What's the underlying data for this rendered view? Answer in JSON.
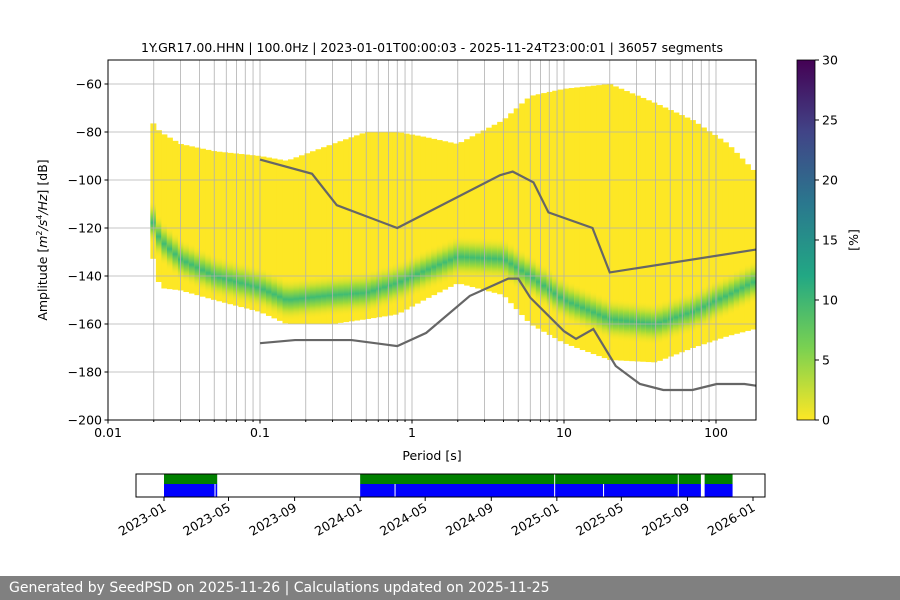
{
  "chart_data": {
    "type": "heatmap",
    "title": "1Y.GR17.00.HHN | 100.0Hz | 2023-01-01T00:00:03 - 2025-11-24T23:00:01 | 36057 segments",
    "xlabel": "Period [s]",
    "ylabel": "Amplitude [m²/s⁴/Hz] [dB]",
    "xscale": "log",
    "xlim": [
      0.01,
      183
    ],
    "ylim": [
      -200,
      -50
    ],
    "xticks": [
      {
        "v": 0.01,
        "label": "0.01"
      },
      {
        "v": 0.1,
        "label": "0.1"
      },
      {
        "v": 1,
        "label": "1"
      },
      {
        "v": 10,
        "label": "10"
      },
      {
        "v": 100,
        "label": "100"
      }
    ],
    "yticks": [
      -200,
      -180,
      -160,
      -140,
      -120,
      -100,
      -80,
      -60
    ],
    "grid": true,
    "pdf_envelope": {
      "period": [
        0.019,
        0.022,
        0.03,
        0.05,
        0.1,
        0.15,
        0.3,
        0.5,
        0.8,
        1.2,
        2,
        4,
        6,
        10,
        20,
        40,
        70,
        120,
        183
      ],
      "min_db": [
        -128,
        -145,
        -146,
        -150,
        -155,
        -160,
        -160,
        -158,
        -156,
        -150,
        -143,
        -148,
        -160,
        -168,
        -175,
        -176,
        -170,
        -165,
        -162
      ],
      "max_db": [
        -75,
        -80,
        -85,
        -88,
        -90,
        -92,
        -85,
        -80,
        -80,
        -82,
        -85,
        -75,
        -65,
        -62,
        -60,
        -68,
        -75,
        -85,
        -97
      ],
      "mode_db": [
        -115,
        -125,
        -133,
        -140,
        -145,
        -150,
        -148,
        -147,
        -143,
        -138,
        -132,
        -133,
        -140,
        -150,
        -158,
        -160,
        -155,
        -148,
        -142
      ]
    },
    "nhnm": {
      "period": [
        0.1,
        0.22,
        0.32,
        0.8,
        3.8,
        4.6,
        6.3,
        7.9,
        15.4,
        20,
        183
      ],
      "db": [
        -91.5,
        -97.4,
        -110.5,
        -120,
        -98,
        -96.5,
        -101,
        -113.5,
        -120,
        -138.5,
        -129
      ]
    },
    "nlnm": {
      "period": [
        0.1,
        0.17,
        0.4,
        0.8,
        1.24,
        2.4,
        4.3,
        5,
        6,
        10,
        12,
        15.6,
        21.9,
        31.6,
        45,
        70,
        101,
        154,
        183
      ],
      "db": [
        -168,
        -166.7,
        -166.7,
        -169.2,
        -163.7,
        -148.3,
        -141.1,
        -141.1,
        -149,
        -163,
        -166.2,
        -162.1,
        -177.5,
        -185,
        -187.5,
        -187.5,
        -185,
        -185,
        -185.7
      ]
    },
    "colorbar": {
      "label": "[%]",
      "min": 0,
      "max": 30,
      "ticks": [
        0,
        5,
        10,
        15,
        20,
        25,
        30
      ]
    },
    "coverage": {
      "xticks": [
        "2023-01",
        "2023-05",
        "2023-09",
        "2024-01",
        "2024-05",
        "2024-09",
        "2025-01",
        "2025-05",
        "2025-09",
        "2026-01"
      ],
      "green": [
        [
          "2023-01-01",
          "2023-04-10"
        ],
        [
          "2024-01-01",
          "2025-09-26"
        ],
        [
          "2025-10-03",
          "2025-11-24"
        ]
      ],
      "blue": [
        [
          "2023-01-01",
          "2023-04-10"
        ],
        [
          "2024-01-01",
          "2025-09-26"
        ],
        [
          "2025-10-03",
          "2025-11-24"
        ]
      ],
      "blue_gaps": [
        "2023-04-05",
        "2024-03-05",
        "2024-12-27",
        "2025-03-28",
        "2025-08-14"
      ],
      "green_gaps": [
        "2024-12-27",
        "2025-08-14"
      ]
    }
  },
  "footer": "Generated by SeedPSD on 2025-11-26 | Calculations updated on 2025-11-25"
}
